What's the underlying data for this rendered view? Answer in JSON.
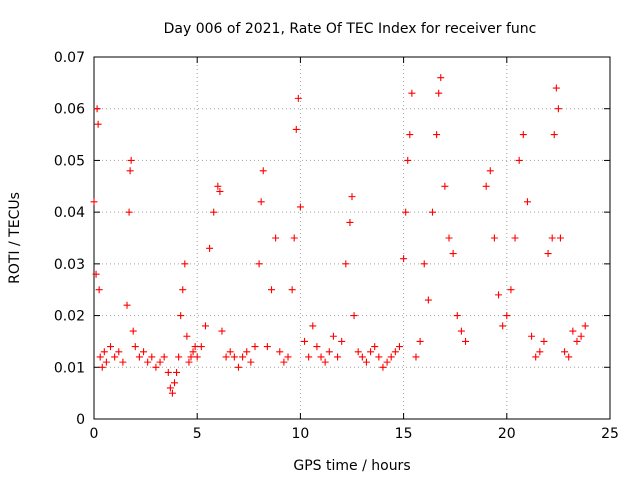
{
  "chart_data": {
    "type": "scatter",
    "title": "Day 006 of 2021, Rate Of TEC Index for receiver func",
    "xlabel": "GPS time / hours",
    "ylabel": "ROTI / TECUs",
    "xlim": [
      0,
      25
    ],
    "ylim": [
      0,
      0.07
    ],
    "xticks": [
      0,
      5,
      10,
      15,
      20,
      25
    ],
    "yticks": [
      0,
      0.01,
      0.02,
      0.03,
      0.04,
      0.05,
      0.06,
      0.07
    ],
    "xtick_labels": [
      "0",
      "5",
      "10",
      "15",
      "20",
      "25"
    ],
    "ytick_labels": [
      "0",
      "0.01",
      "0.02",
      "0.03",
      "0.04",
      "0.05",
      "0.06",
      "0.07"
    ],
    "grid": true,
    "marker": "+",
    "color": "#ff0000",
    "series": [
      {
        "name": "ROTI",
        "x": [
          0.0,
          0.1,
          0.15,
          0.2,
          0.25,
          0.3,
          0.4,
          0.5,
          0.6,
          0.8,
          1.0,
          1.2,
          1.4,
          1.6,
          1.7,
          1.75,
          1.8,
          1.9,
          2.0,
          2.2,
          2.4,
          2.6,
          2.8,
          3.0,
          3.2,
          3.4,
          3.6,
          3.7,
          3.8,
          3.9,
          4.0,
          4.1,
          4.2,
          4.3,
          4.4,
          4.5,
          4.6,
          4.7,
          4.8,
          4.9,
          5.0,
          5.2,
          5.4,
          5.6,
          5.8,
          6.0,
          6.1,
          6.2,
          6.4,
          6.6,
          6.8,
          7.0,
          7.2,
          7.4,
          7.6,
          7.8,
          8.0,
          8.1,
          8.2,
          8.4,
          8.6,
          8.8,
          9.0,
          9.2,
          9.4,
          9.6,
          9.7,
          9.8,
          9.9,
          10.0,
          10.2,
          10.4,
          10.6,
          10.8,
          11.0,
          11.2,
          11.4,
          11.6,
          11.8,
          12.0,
          12.2,
          12.4,
          12.5,
          12.6,
          12.8,
          13.0,
          13.2,
          13.4,
          13.6,
          13.8,
          14.0,
          14.2,
          14.4,
          14.6,
          14.8,
          15.0,
          15.1,
          15.2,
          15.3,
          15.4,
          15.6,
          15.8,
          16.0,
          16.2,
          16.4,
          16.6,
          16.7,
          16.8,
          17.0,
          17.2,
          17.4,
          17.6,
          17.8,
          18.0,
          19.0,
          19.2,
          19.4,
          19.6,
          19.8,
          20.0,
          20.2,
          20.4,
          20.6,
          20.8,
          21.0,
          21.2,
          21.4,
          21.6,
          21.8,
          22.0,
          22.2,
          22.3,
          22.4,
          22.5,
          22.6,
          22.8,
          23.0,
          23.2,
          23.4,
          23.6,
          23.8
        ],
        "y": [
          0.042,
          0.028,
          0.06,
          0.057,
          0.025,
          0.012,
          0.01,
          0.013,
          0.011,
          0.014,
          0.012,
          0.013,
          0.011,
          0.022,
          0.04,
          0.048,
          0.05,
          0.017,
          0.014,
          0.012,
          0.013,
          0.011,
          0.012,
          0.01,
          0.011,
          0.012,
          0.009,
          0.006,
          0.005,
          0.007,
          0.009,
          0.012,
          0.02,
          0.025,
          0.03,
          0.016,
          0.011,
          0.012,
          0.013,
          0.014,
          0.012,
          0.014,
          0.018,
          0.033,
          0.04,
          0.045,
          0.044,
          0.017,
          0.012,
          0.013,
          0.012,
          0.01,
          0.012,
          0.013,
          0.011,
          0.014,
          0.03,
          0.042,
          0.048,
          0.014,
          0.025,
          0.035,
          0.013,
          0.011,
          0.012,
          0.025,
          0.035,
          0.056,
          0.062,
          0.041,
          0.015,
          0.012,
          0.018,
          0.014,
          0.012,
          0.011,
          0.013,
          0.016,
          0.012,
          0.015,
          0.03,
          0.038,
          0.043,
          0.02,
          0.013,
          0.012,
          0.011,
          0.013,
          0.014,
          0.012,
          0.01,
          0.011,
          0.012,
          0.013,
          0.014,
          0.031,
          0.04,
          0.05,
          0.055,
          0.063,
          0.012,
          0.015,
          0.03,
          0.023,
          0.04,
          0.055,
          0.063,
          0.066,
          0.045,
          0.035,
          0.032,
          0.02,
          0.017,
          0.015,
          0.045,
          0.048,
          0.035,
          0.024,
          0.018,
          0.02,
          0.025,
          0.035,
          0.05,
          0.055,
          0.042,
          0.016,
          0.012,
          0.013,
          0.015,
          0.032,
          0.035,
          0.055,
          0.064,
          0.06,
          0.035,
          0.013,
          0.012,
          0.017,
          0.015,
          0.016,
          0.018
        ]
      }
    ]
  }
}
